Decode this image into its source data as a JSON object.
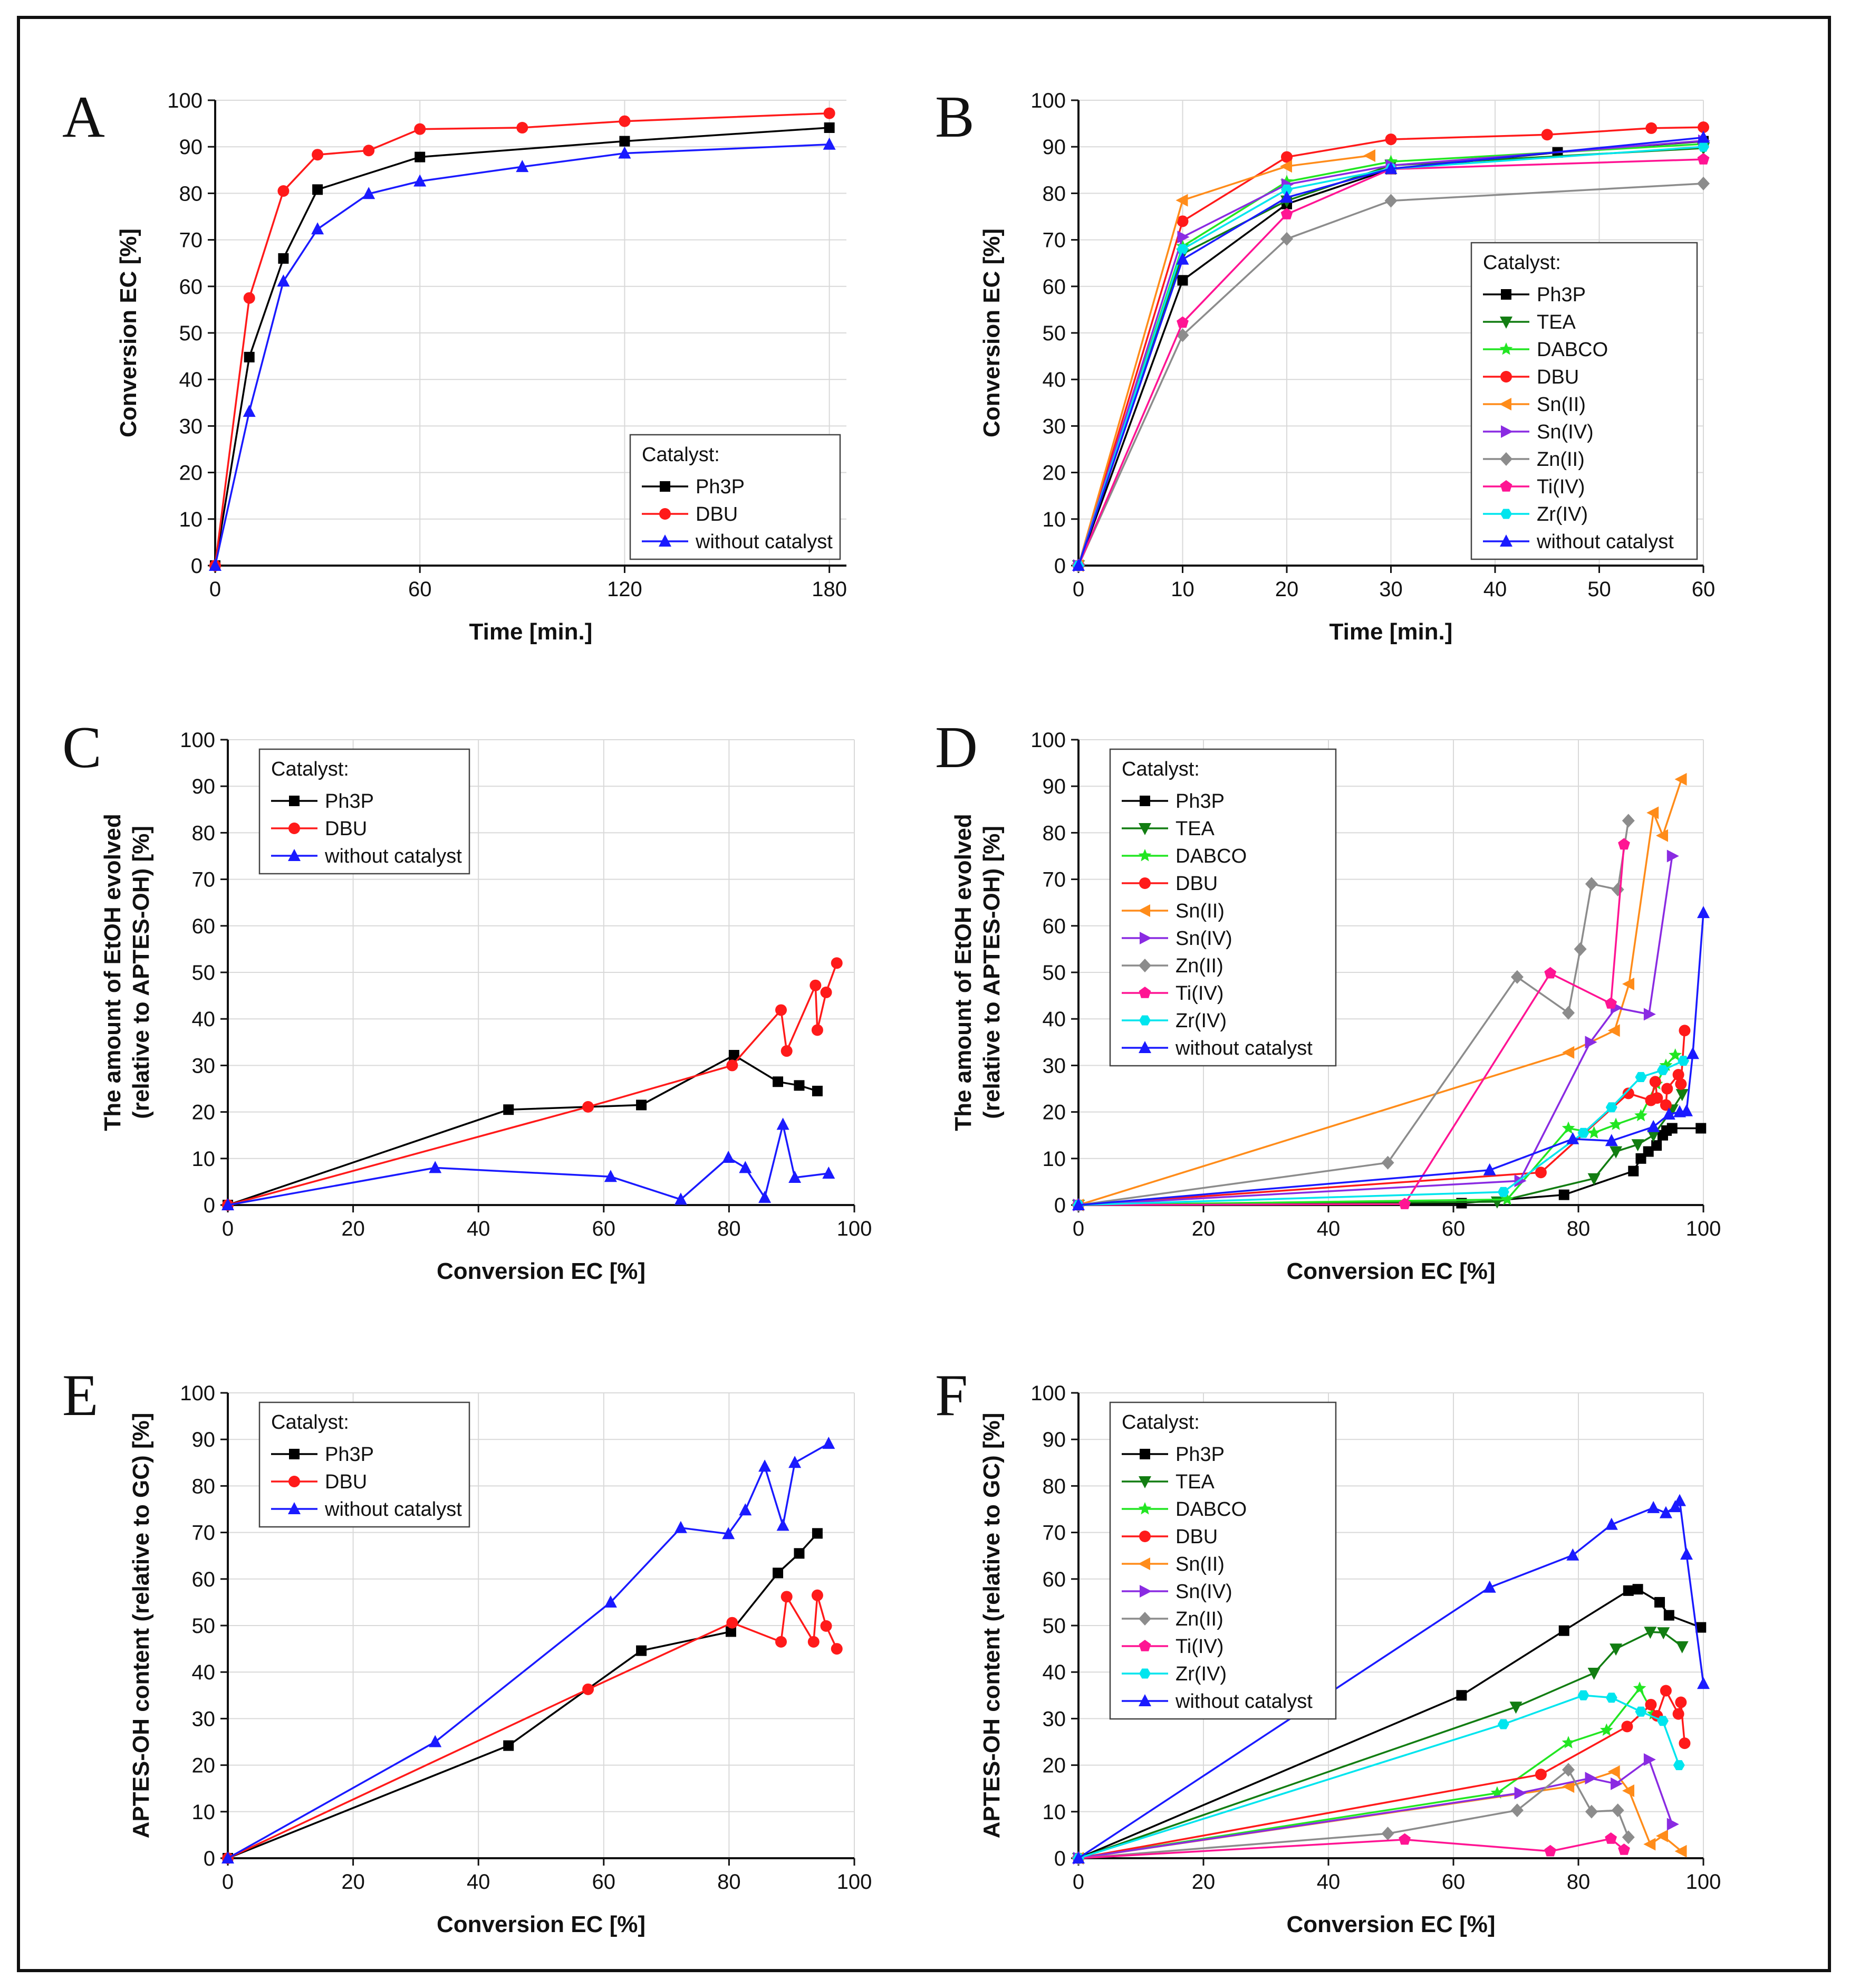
{
  "figure": {
    "panel_letters": [
      "A",
      "B",
      "C",
      "D",
      "E",
      "F"
    ],
    "legend_title": "Catalyst:"
  },
  "colors": {
    "Ph3P": "#000000",
    "TEA": "#127d12",
    "DABCO": "#22e622",
    "DBU": "#ff1a1a",
    "Sn(II)": "#ff8c1a",
    "Sn(IV)": "#8a2be2",
    "Zn(II)": "#8c8c8c",
    "Ti(IV)": "#ff1493",
    "Zr(IV)": "#00e5ee",
    "without catalyst": "#1a1aff"
  },
  "markers": {
    "Ph3P": "square",
    "TEA": "triangle-down",
    "DABCO": "star",
    "DBU": "circle",
    "Sn(II)": "triangle-left",
    "Sn(IV)": "triangle-right",
    "Zn(II)": "diamond",
    "Ti(IV)": "pentagon",
    "Zr(IV)": "hexagon",
    "without catalyst": "triangle-up"
  },
  "chart_data": [
    {
      "panel": "A",
      "type": "line",
      "xlabel": "Time [min.]",
      "ylabel": [
        "Conversion EC [%]"
      ],
      "xlim": [
        0,
        185
      ],
      "xticks": [
        0,
        60,
        120,
        180
      ],
      "ylim": [
        0,
        100
      ],
      "yticks": [
        0,
        10,
        20,
        30,
        40,
        50,
        60,
        70,
        80,
        90,
        100
      ],
      "legend_pos": "bottom-right",
      "series": [
        {
          "name": "Ph3P",
          "x": [
            0,
            10,
            20,
            30,
            60,
            120,
            180
          ],
          "y": [
            0,
            44.8,
            66,
            80.8,
            87.8,
            91.2,
            94.1
          ]
        },
        {
          "name": "DBU",
          "x": [
            0,
            10,
            20,
            30,
            45,
            60,
            90,
            120,
            180
          ],
          "y": [
            0,
            57.5,
            80.5,
            88.3,
            89.2,
            93.8,
            94.1,
            95.5,
            97.2
          ]
        },
        {
          "name": "without catalyst",
          "x": [
            0,
            10,
            20,
            30,
            45,
            60,
            90,
            120,
            180
          ],
          "y": [
            0,
            33.1,
            61.1,
            72.3,
            79.9,
            82.6,
            85.7,
            88.6,
            90.5
          ]
        }
      ]
    },
    {
      "panel": "B",
      "type": "line",
      "xlabel": "Time [min.]",
      "ylabel": [
        "Conversion EC [%]"
      ],
      "xlim": [
        0,
        60
      ],
      "xticks": [
        0,
        10,
        20,
        30,
        40,
        50,
        60
      ],
      "ylim": [
        0,
        100
      ],
      "yticks": [
        0,
        10,
        20,
        30,
        40,
        50,
        60,
        70,
        80,
        90,
        100
      ],
      "legend_pos": "bottom-right",
      "series": [
        {
          "name": "Ph3P",
          "x": [
            0,
            10,
            20,
            30,
            46,
            60
          ],
          "y": [
            0,
            61.3,
            77.7,
            85.2,
            88.8,
            91.2
          ]
        },
        {
          "name": "TEA",
          "x": [
            0,
            10,
            20,
            30,
            60
          ],
          "y": [
            0,
            67,
            78.4,
            86,
            89.7
          ]
        },
        {
          "name": "DABCO",
          "x": [
            0,
            10,
            20,
            30,
            60
          ],
          "y": [
            0,
            68.6,
            82.5,
            86.8,
            90.6
          ]
        },
        {
          "name": "DBU",
          "x": [
            0,
            10,
            20,
            30,
            45,
            55,
            60
          ],
          "y": [
            0,
            74,
            87.8,
            91.6,
            92.6,
            94,
            94.2
          ]
        },
        {
          "name": "Sn(II)",
          "x": [
            0,
            10,
            20,
            28
          ],
          "y": [
            0,
            78.5,
            85.8,
            88.1
          ]
        },
        {
          "name": "Sn(IV)",
          "x": [
            0,
            10,
            20,
            30,
            60
          ],
          "y": [
            0,
            70.6,
            81.9,
            86,
            91.3
          ]
        },
        {
          "name": "Zn(II)",
          "x": [
            0,
            10,
            20,
            30,
            60
          ],
          "y": [
            0,
            49.5,
            70.2,
            78.4,
            82.1
          ]
        },
        {
          "name": "Ti(IV)",
          "x": [
            0,
            10,
            20,
            30,
            60
          ],
          "y": [
            0,
            52.2,
            75.5,
            85.2,
            87.3
          ]
        },
        {
          "name": "Zr(IV)",
          "x": [
            0,
            10,
            20,
            30,
            60
          ],
          "y": [
            0,
            68,
            80.8,
            85.3,
            90
          ]
        },
        {
          "name": "without catalyst",
          "x": [
            0,
            10,
            20,
            30,
            60
          ],
          "y": [
            0,
            65.8,
            79.1,
            85.3,
            92
          ]
        }
      ]
    },
    {
      "panel": "C",
      "type": "line",
      "xlabel": "Conversion EC [%]",
      "ylabel": [
        "The amount of EtOH evolved",
        "(relative to APTES-OH) [%]"
      ],
      "xlim": [
        0,
        100
      ],
      "xticks": [
        0,
        20,
        40,
        60,
        80,
        100
      ],
      "ylim": [
        0,
        100
      ],
      "yticks": [
        0,
        10,
        20,
        30,
        40,
        50,
        60,
        70,
        80,
        90,
        100
      ],
      "legend_pos": "top-left",
      "series": [
        {
          "name": "Ph3P",
          "x": [
            0,
            44.8,
            66,
            80.8,
            87.8,
            91.2,
            94.1
          ],
          "y": [
            0,
            20.5,
            21.5,
            32.2,
            26.5,
            25.7,
            24.5
          ]
        },
        {
          "name": "DBU",
          "x": [
            0,
            57.5,
            80.5,
            88.3,
            89.2,
            93.8,
            94.1,
            95.5,
            97.2
          ],
          "y": [
            0,
            21.1,
            30,
            41.9,
            33.1,
            47.2,
            37.6,
            45.7,
            52
          ]
        },
        {
          "name": "without catalyst",
          "x": [
            0,
            33.1,
            61.1,
            72.3,
            79.9,
            82.6,
            85.7,
            88.6,
            90.5,
            95.9
          ],
          "y": [
            0,
            8,
            6.1,
            1.2,
            10.2,
            8,
            1.6,
            17.3,
            5.9,
            6.8
          ]
        }
      ]
    },
    {
      "panel": "D",
      "type": "line",
      "xlabel": "Conversion EC [%]",
      "ylabel": [
        "The amount of EtOH evolved",
        "(relative to APTES-OH) [%]"
      ],
      "xlim": [
        0,
        100
      ],
      "xticks": [
        0,
        20,
        40,
        60,
        80,
        100
      ],
      "ylim": [
        0,
        100
      ],
      "yticks": [
        0,
        10,
        20,
        30,
        40,
        50,
        60,
        70,
        80,
        90,
        100
      ],
      "legend_pos": "top-left",
      "series": [
        {
          "name": "Ph3P",
          "x": [
            0,
            61.3,
            77.7,
            88.8,
            90,
            91.2,
            92.5,
            93.5,
            94.1,
            95,
            99.6
          ],
          "y": [
            0,
            0.4,
            2.2,
            7.3,
            10,
            11.5,
            12.8,
            15,
            16,
            16.5,
            16.5
          ]
        },
        {
          "name": "TEA",
          "x": [
            0,
            67,
            82.5,
            86,
            89.5,
            92,
            95,
            96.6
          ],
          "y": [
            0,
            0.7,
            5.7,
            11.5,
            13,
            15,
            20.5,
            23.8
          ]
        },
        {
          "name": "DABCO",
          "x": [
            0,
            68.6,
            78.4,
            82.5,
            86,
            90,
            92.5,
            94,
            95.5
          ],
          "y": [
            0,
            1.2,
            16.5,
            15.5,
            17.3,
            19.2,
            26,
            30,
            32.2
          ]
        },
        {
          "name": "DBU",
          "x": [
            0,
            74,
            88,
            91.6,
            92.3,
            92.6,
            94,
            94.2,
            96,
            96.4,
            97
          ],
          "y": [
            0,
            7,
            24,
            22.5,
            26.5,
            23,
            21.5,
            25,
            28,
            26,
            37.5
          ]
        },
        {
          "name": "Sn(II)",
          "x": [
            0,
            78.5,
            85.8,
            88.1,
            92,
            93.5,
            96.5
          ],
          "y": [
            0,
            32.8,
            37.5,
            47.5,
            84.3,
            79.4,
            91.5
          ]
        },
        {
          "name": "Sn(IV)",
          "x": [
            0,
            70.6,
            81.9,
            86,
            91.3,
            95
          ],
          "y": [
            0,
            5.2,
            35,
            42.4,
            41,
            75
          ]
        },
        {
          "name": "Zn(II)",
          "x": [
            0,
            49.5,
            70.2,
            78.4,
            80.3,
            82.1,
            86.3,
            88
          ],
          "y": [
            0,
            9.1,
            49,
            41.3,
            55,
            69,
            67.8,
            82.6
          ]
        },
        {
          "name": "Ti(IV)",
          "x": [
            0,
            52.2,
            75.5,
            85.2,
            87.3
          ],
          "y": [
            0,
            0.2,
            49.8,
            43.3,
            77.5
          ]
        },
        {
          "name": "Zr(IV)",
          "x": [
            0,
            68,
            80.8,
            85.3,
            90,
            93.5,
            96.8
          ],
          "y": [
            0,
            2.8,
            15.5,
            21,
            27.5,
            29,
            31
          ]
        },
        {
          "name": "without catalyst",
          "x": [
            0,
            65.8,
            79.1,
            85.3,
            92,
            94.5,
            96.2,
            97.3,
            98.3,
            100
          ],
          "y": [
            0,
            7.5,
            14.2,
            13.8,
            16.8,
            19.5,
            20,
            20.2,
            32.5,
            62.8
          ]
        }
      ]
    },
    {
      "panel": "E",
      "type": "line",
      "xlabel": "Conversion EC [%]",
      "ylabel": [
        "APTES-OH content (relative to GC) [%]"
      ],
      "xlim": [
        0,
        100
      ],
      "xticks": [
        0,
        20,
        40,
        60,
        80,
        100
      ],
      "ylim": [
        0,
        100
      ],
      "yticks": [
        0,
        10,
        20,
        30,
        40,
        50,
        60,
        70,
        80,
        90,
        100
      ],
      "legend_pos": "top-left",
      "series": [
        {
          "name": "Ph3P",
          "x": [
            0,
            44.8,
            66,
            80.3,
            87.8,
            91.2,
            94.1
          ],
          "y": [
            0,
            24.2,
            44.6,
            48.7,
            61.3,
            65.5,
            69.8
          ]
        },
        {
          "name": "DBU",
          "x": [
            0,
            57.5,
            80.5,
            88.3,
            89.2,
            93.5,
            94.1,
            95.5,
            97.2
          ],
          "y": [
            0,
            36.3,
            50.6,
            46.5,
            56.2,
            46.5,
            56.5,
            49.9,
            45
          ]
        },
        {
          "name": "without catalyst",
          "x": [
            0,
            33.1,
            61.1,
            72.3,
            79.9,
            82.6,
            85.7,
            88.6,
            90.5,
            95.9
          ],
          "y": [
            0,
            25,
            55,
            71,
            69.7,
            74.8,
            84.2,
            71.5,
            85,
            89.1
          ]
        }
      ]
    },
    {
      "panel": "F",
      "type": "line",
      "xlabel": "Conversion EC [%]",
      "ylabel": [
        "APTES-OH content (relative to GC) [%]"
      ],
      "xlim": [
        0,
        100
      ],
      "xticks": [
        0,
        20,
        40,
        60,
        80,
        100
      ],
      "ylim": [
        0,
        100
      ],
      "yticks": [
        0,
        10,
        20,
        30,
        40,
        50,
        60,
        70,
        80,
        90,
        100
      ],
      "legend_pos": "top-left",
      "series": [
        {
          "name": "Ph3P",
          "x": [
            0,
            61.3,
            77.7,
            88,
            89.5,
            93,
            94.5,
            99.6
          ],
          "y": [
            0,
            35,
            48.9,
            57.5,
            57.8,
            55,
            52.2,
            49.6
          ]
        },
        {
          "name": "TEA",
          "x": [
            0,
            70,
            82.5,
            86,
            91.5,
            93.6,
            96.6
          ],
          "y": [
            0,
            32.5,
            39.8,
            45,
            48.6,
            48.5,
            45.5
          ]
        },
        {
          "name": "DABCO",
          "x": [
            0,
            67,
            78.4,
            84.5,
            89.8,
            92
          ],
          "y": [
            0,
            14,
            24.8,
            27.5,
            36.5,
            31
          ]
        },
        {
          "name": "DBU",
          "x": [
            0,
            74,
            87.8,
            91.6,
            92.6,
            94,
            96,
            96.4,
            97
          ],
          "y": [
            0,
            18,
            28.3,
            33,
            30.6,
            36,
            31,
            33.5,
            24.7
          ]
        },
        {
          "name": "Sn(II)",
          "x": [
            0,
            78.5,
            85.8,
            88.1,
            91.5,
            93.5,
            96.5
          ],
          "y": [
            0,
            15.4,
            18.6,
            14.5,
            3,
            4.8,
            1.5
          ]
        },
        {
          "name": "Sn(IV)",
          "x": [
            0,
            70.6,
            81.9,
            86,
            91.3,
            95
          ],
          "y": [
            0,
            14,
            17.2,
            16,
            21.2,
            7.3
          ]
        },
        {
          "name": "Zn(II)",
          "x": [
            0,
            49.5,
            70.2,
            78.4,
            82.1,
            86.3,
            88
          ],
          "y": [
            0,
            5.3,
            10.3,
            19,
            10,
            10.3,
            4.5
          ]
        },
        {
          "name": "Ti(IV)",
          "x": [
            0,
            52.2,
            75.5,
            85.2,
            87.3
          ],
          "y": [
            0,
            4,
            1.5,
            4.2,
            1.8
          ]
        },
        {
          "name": "Zr(IV)",
          "x": [
            0,
            68,
            80.8,
            85.3,
            90,
            93.5,
            96.1
          ],
          "y": [
            0,
            28.8,
            35,
            34.5,
            31.5,
            29.5,
            20
          ]
        },
        {
          "name": "without catalyst",
          "x": [
            0,
            65.8,
            79.1,
            85.3,
            92,
            94,
            95.5,
            96.2,
            97.3,
            100
          ],
          "y": [
            0,
            58.2,
            65.1,
            71.7,
            75.3,
            74.2,
            75.5,
            76.8,
            65.3,
            37.5
          ]
        }
      ]
    }
  ]
}
